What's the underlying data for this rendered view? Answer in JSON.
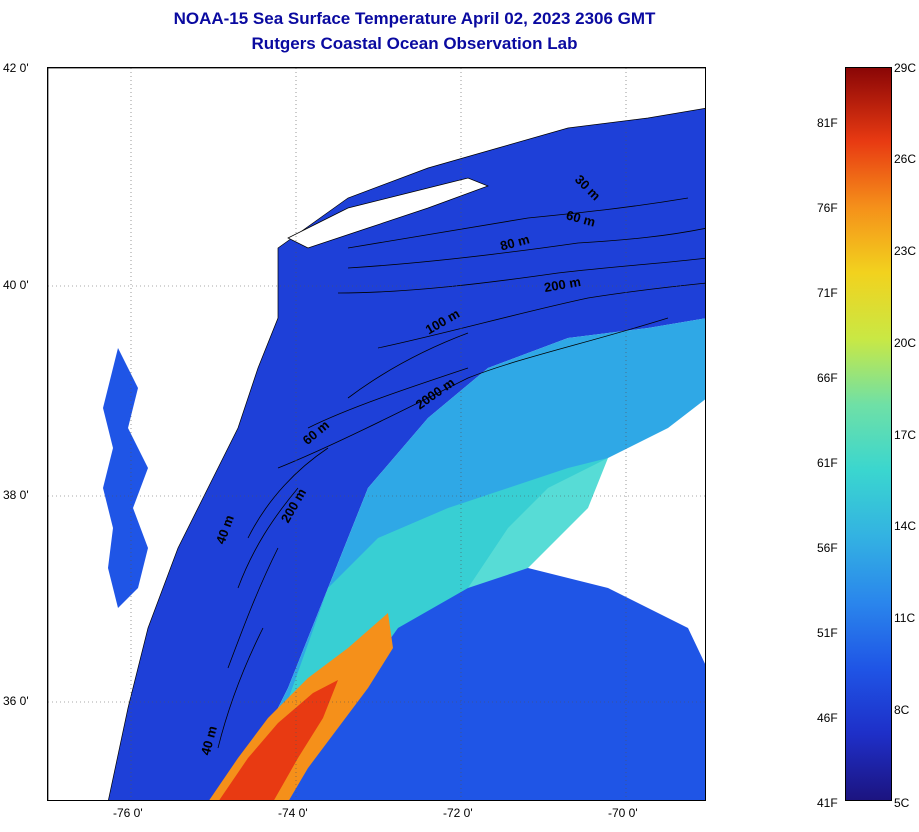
{
  "title": {
    "line1": "NOAA-15 Sea Surface Temperature April 02, 2023 2306 GMT",
    "line2": "Rutgers Coastal Ocean Observation Lab"
  },
  "axes": {
    "lat_labels": [
      "42 0'",
      "40 0'",
      "38 0'",
      "36 0'"
    ],
    "lon_labels": [
      "-76 0'",
      "-74 0'",
      "-72 0'",
      "-70 0'"
    ]
  },
  "contours": {
    "labels": [
      "30 m",
      "60 m",
      "80 m",
      "200 m",
      "100 m",
      "2000 m",
      "60 m",
      "200 m",
      "40 m",
      "40 m"
    ]
  },
  "colorbar": {
    "fahrenheit": [
      "81F",
      "76F",
      "71F",
      "66F",
      "61F",
      "56F",
      "51F",
      "46F",
      "41F"
    ],
    "celsius": [
      "29C",
      "26C",
      "23C",
      "20C",
      "17C",
      "14C",
      "11C",
      "8C",
      "5C"
    ],
    "colors": [
      "#1c1480",
      "#1e2fc8",
      "#1f55e6",
      "#2a86ec",
      "#33b2e2",
      "#3ad6cf",
      "#6fe0a6",
      "#c9e844",
      "#f2d21e",
      "#f5901a",
      "#e83a12",
      "#8a0606"
    ]
  }
}
